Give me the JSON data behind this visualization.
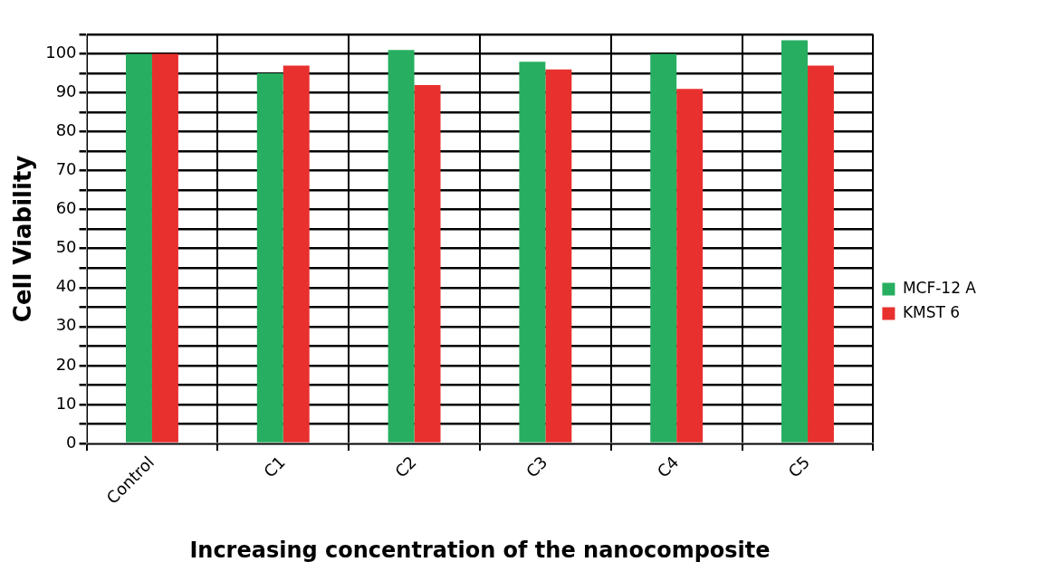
{
  "chart_data": {
    "type": "bar",
    "xlabel": "Increasing concentration of the nanocomposite",
    "ylabel": "Cell Viability",
    "categories": [
      "Control",
      "C1",
      "C2",
      "C3",
      "C4",
      "C5"
    ],
    "series": [
      {
        "name": "MCF-12 A",
        "color": "#27ae60",
        "values": [
          100,
          95,
          101,
          98,
          100,
          103.5
        ]
      },
      {
        "name": "KMST 6",
        "color": "#e8302e",
        "values": [
          100,
          97,
          92,
          96,
          91,
          97
        ]
      }
    ],
    "ylim": [
      0,
      105
    ],
    "yticks": [
      0,
      {
        "value": 5,
        "label": null
      },
      10,
      {
        "value": 15,
        "label": null
      },
      20,
      {
        "value": 25,
        "label": null
      },
      30,
      {
        "value": 35,
        "label": null
      },
      40,
      {
        "value": 45,
        "label": null
      },
      50,
      {
        "value": 55,
        "label": null
      },
      60,
      {
        "value": 65,
        "label": null
      },
      70,
      {
        "value": 75,
        "label": null
      },
      80,
      {
        "value": 85,
        "label": null
      },
      90,
      {
        "value": 95,
        "label": null
      },
      100,
      {
        "value": 105,
        "label": null
      }
    ],
    "grid": true,
    "legend": "right"
  }
}
